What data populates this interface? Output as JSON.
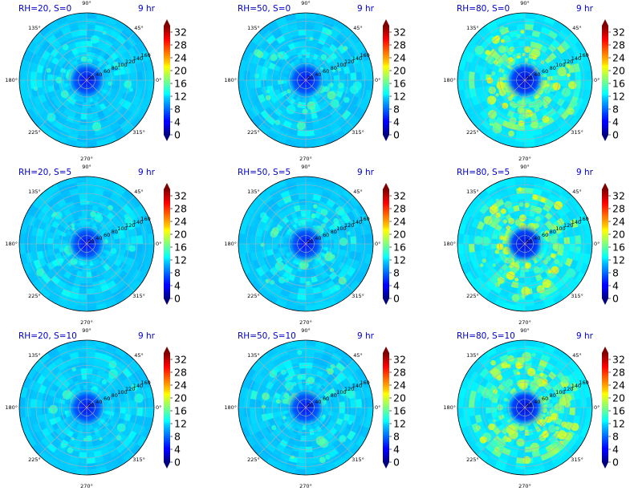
{
  "figure": {
    "time_label": "9 hr",
    "colormap": "jet",
    "title_color": "#0000cc"
  },
  "chart_data": [
    {
      "type": "polar-heatmap",
      "title": "RH=20, S=0",
      "time_label": "9 hr",
      "rh": 20,
      "s": 0,
      "theta_tick_labels": [
        "0°",
        "45°",
        "90°",
        "135°",
        "180°",
        "225°",
        "270°",
        "315°"
      ],
      "r_tick_labels": [
        "20",
        "40",
        "60",
        "80",
        "100",
        "120",
        "140",
        "160"
      ],
      "rlim": [
        0,
        160
      ],
      "colorbar_ticks": [
        0,
        4,
        8,
        12,
        16,
        20,
        24,
        28,
        32
      ],
      "clim": [
        0,
        34
      ],
      "center_value": 6,
      "background_value": 11,
      "patch_strength": 1.5
    },
    {
      "type": "polar-heatmap",
      "title": "RH=50, S=0",
      "time_label": "9 hr",
      "rh": 50,
      "s": 0,
      "theta_tick_labels": [
        "0°",
        "45°",
        "90°",
        "135°",
        "180°",
        "225°",
        "270°",
        "315°"
      ],
      "r_tick_labels": [
        "20",
        "40",
        "60",
        "80",
        "100",
        "120",
        "140",
        "160"
      ],
      "rlim": [
        0,
        160
      ],
      "colorbar_ticks": [
        0,
        4,
        8,
        12,
        16,
        20,
        24,
        28,
        32
      ],
      "clim": [
        0,
        34
      ],
      "center_value": 6,
      "background_value": 11,
      "patch_strength": 2.5
    },
    {
      "type": "polar-heatmap",
      "title": "RH=80, S=0",
      "time_label": "9 hr",
      "rh": 80,
      "s": 0,
      "theta_tick_labels": [
        "0°",
        "45°",
        "90°",
        "135°",
        "180°",
        "225°",
        "270°",
        "315°"
      ],
      "r_tick_labels": [
        "20",
        "40",
        "60",
        "80",
        "100",
        "120",
        "140",
        "160"
      ],
      "rlim": [
        0,
        160
      ],
      "colorbar_ticks": [
        0,
        4,
        8,
        12,
        16,
        20,
        24,
        28,
        32
      ],
      "clim": [
        0,
        34
      ],
      "center_value": 5,
      "background_value": 12,
      "patch_strength": 6
    },
    {
      "type": "polar-heatmap",
      "title": "RH=20, S=5",
      "time_label": "9 hr",
      "rh": 20,
      "s": 5,
      "theta_tick_labels": [
        "0°",
        "45°",
        "90°",
        "135°",
        "180°",
        "225°",
        "270°",
        "315°"
      ],
      "r_tick_labels": [
        "20",
        "40",
        "60",
        "80",
        "100",
        "120",
        "140",
        "160"
      ],
      "rlim": [
        0,
        160
      ],
      "colorbar_ticks": [
        0,
        4,
        8,
        12,
        16,
        20,
        24,
        28,
        32
      ],
      "clim": [
        0,
        34
      ],
      "center_value": 6,
      "background_value": 11,
      "patch_strength": 1.5
    },
    {
      "type": "polar-heatmap",
      "title": "RH=50, S=5",
      "time_label": "9 hr",
      "rh": 50,
      "s": 5,
      "theta_tick_labels": [
        "0°",
        "45°",
        "90°",
        "135°",
        "180°",
        "225°",
        "270°",
        "315°"
      ],
      "r_tick_labels": [
        "20",
        "40",
        "60",
        "80",
        "100",
        "120",
        "140",
        "160"
      ],
      "rlim": [
        0,
        160
      ],
      "colorbar_ticks": [
        0,
        4,
        8,
        12,
        16,
        20,
        24,
        28,
        32
      ],
      "clim": [
        0,
        34
      ],
      "center_value": 6,
      "background_value": 11,
      "patch_strength": 2.5
    },
    {
      "type": "polar-heatmap",
      "title": "RH=80, S=5",
      "time_label": "9 hr",
      "rh": 80,
      "s": 5,
      "theta_tick_labels": [
        "0°",
        "45°",
        "90°",
        "135°",
        "180°",
        "225°",
        "270°",
        "315°"
      ],
      "r_tick_labels": [
        "20",
        "40",
        "60",
        "80",
        "100",
        "120",
        "140",
        "160"
      ],
      "rlim": [
        0,
        160
      ],
      "colorbar_ticks": [
        0,
        4,
        8,
        12,
        16,
        20,
        24,
        28,
        32
      ],
      "clim": [
        0,
        34
      ],
      "center_value": 5,
      "background_value": 12,
      "patch_strength": 6
    },
    {
      "type": "polar-heatmap",
      "title": "RH=20, S=10",
      "time_label": "9 hr",
      "rh": 20,
      "s": 10,
      "theta_tick_labels": [
        "0°",
        "45°",
        "90°",
        "135°",
        "180°",
        "225°",
        "270°",
        "315°"
      ],
      "r_tick_labels": [
        "20",
        "40",
        "60",
        "80",
        "100",
        "120",
        "140",
        "160"
      ],
      "rlim": [
        0,
        160
      ],
      "colorbar_ticks": [
        0,
        4,
        8,
        12,
        16,
        20,
        24,
        28,
        32
      ],
      "clim": [
        0,
        34
      ],
      "center_value": 6,
      "background_value": 11,
      "patch_strength": 1.5
    },
    {
      "type": "polar-heatmap",
      "title": "RH=50, S=10",
      "time_label": "9 hr",
      "rh": 50,
      "s": 10,
      "theta_tick_labels": [
        "0°",
        "45°",
        "90°",
        "135°",
        "180°",
        "225°",
        "270°",
        "315°"
      ],
      "r_tick_labels": [
        "20",
        "40",
        "60",
        "80",
        "100",
        "120",
        "140",
        "160"
      ],
      "rlim": [
        0,
        160
      ],
      "colorbar_ticks": [
        0,
        4,
        8,
        12,
        16,
        20,
        24,
        28,
        32
      ],
      "clim": [
        0,
        34
      ],
      "center_value": 6,
      "background_value": 11,
      "patch_strength": 2.5
    },
    {
      "type": "polar-heatmap",
      "title": "RH=80, S=10",
      "time_label": "9 hr",
      "rh": 80,
      "s": 10,
      "theta_tick_labels": [
        "0°",
        "45°",
        "90°",
        "135°",
        "180°",
        "225°",
        "270°",
        "315°"
      ],
      "r_tick_labels": [
        "20",
        "40",
        "60",
        "80",
        "100",
        "120",
        "140",
        "160"
      ],
      "rlim": [
        0,
        160
      ],
      "colorbar_ticks": [
        0,
        4,
        8,
        12,
        16,
        20,
        24,
        28,
        32
      ],
      "clim": [
        0,
        34
      ],
      "center_value": 5,
      "background_value": 12,
      "patch_strength": 6
    }
  ]
}
